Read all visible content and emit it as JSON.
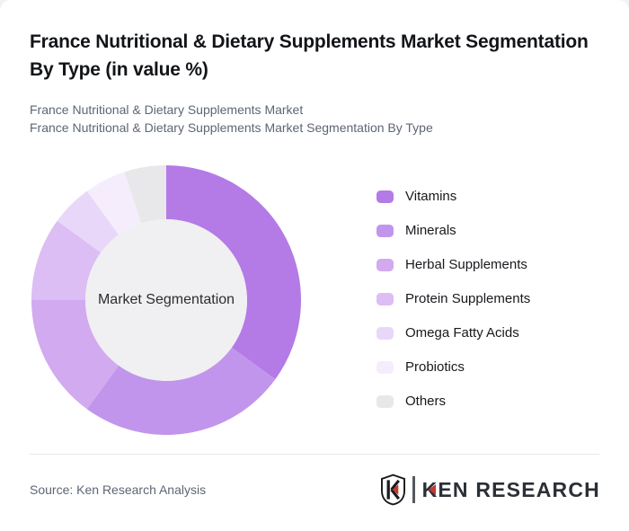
{
  "header": {
    "title": "France Nutritional & Dietary Supplements Market Segmentation By Type (in value %)",
    "subtitle_line1": "France Nutritional & Dietary Supplements Market",
    "subtitle_line2": "France Nutritional & Dietary Supplements Market Segmentation By Type"
  },
  "chart_data": {
    "type": "pie",
    "variant": "donut",
    "title": "France Nutritional & Dietary Supplements Market Segmentation By Type (in value %)",
    "center_label": "Market Segmentation",
    "unit": "%",
    "start_angle_deg": 0,
    "direction": "clockwise",
    "legend_position": "right",
    "categories": [
      "Vitamins",
      "Minerals",
      "Herbal Supplements",
      "Protein Supplements",
      "Omega Fatty Acids",
      "Probiotics",
      "Others"
    ],
    "values": [
      35,
      25,
      15,
      10,
      5,
      5,
      5
    ],
    "colors": [
      "#b47ae6",
      "#c295ec",
      "#d2aaf0",
      "#dcbdf4",
      "#e9d7f9",
      "#f5edfc",
      "#e8e7ea"
    ],
    "inner_circle_color": "#f0eff1",
    "outer_radius": 150,
    "inner_radius": 90
  },
  "footer": {
    "source_text": "Source: Ken Research Analysis",
    "logo": {
      "shield_letter": "K",
      "brand_k": "K",
      "brand_rest": "EN RESEARCH",
      "accent_color": "#c23a30",
      "text_color": "#2b2f36"
    }
  }
}
